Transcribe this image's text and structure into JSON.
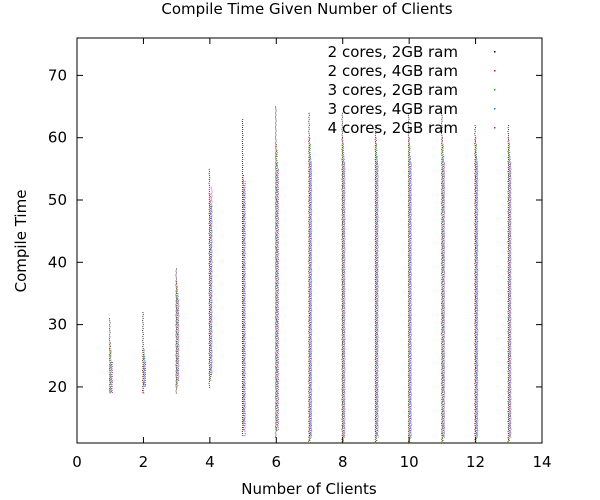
{
  "chart_data": {
    "type": "scatter",
    "title": "Compile Time Given Number of Clients",
    "xlabel": "Number of Clients",
    "ylabel": "Compile Time",
    "xlim": [
      0,
      14
    ],
    "ylim": [
      11,
      76
    ],
    "xticks": [
      0,
      2,
      4,
      6,
      8,
      10,
      12,
      14
    ],
    "yticks": [
      20,
      30,
      40,
      50,
      60,
      70
    ],
    "grid": false,
    "legend_position": "top-right",
    "series": [
      {
        "name": "2 cores, 2GB ram",
        "color": "#000000",
        "clusters": [
          {
            "x": 1,
            "min": 19,
            "max": 31
          },
          {
            "x": 2,
            "min": 19,
            "max": 32
          },
          {
            "x": 3,
            "min": 19,
            "max": 39
          },
          {
            "x": 4,
            "min": 20,
            "max": 55
          },
          {
            "x": 5,
            "min": 12,
            "max": 63
          },
          {
            "x": 6,
            "min": 12,
            "max": 65
          },
          {
            "x": 7,
            "min": 11,
            "max": 64
          },
          {
            "x": 8,
            "min": 11,
            "max": 64
          },
          {
            "x": 9,
            "min": 11,
            "max": 62
          },
          {
            "x": 10,
            "min": 11,
            "max": 64
          },
          {
            "x": 11,
            "min": 11,
            "max": 64
          },
          {
            "x": 12,
            "min": 11,
            "max": 62
          },
          {
            "x": 13,
            "min": 11,
            "max": 62
          }
        ]
      },
      {
        "name": "2 cores, 4GB ram",
        "color": "#ff0000",
        "clusters": [
          {
            "x": 1,
            "min": 19,
            "max": 27
          },
          {
            "x": 2,
            "min": 19,
            "max": 26
          },
          {
            "x": 3,
            "min": 20,
            "max": 37
          },
          {
            "x": 4,
            "min": 21,
            "max": 51
          },
          {
            "x": 5,
            "min": 13,
            "max": 54
          },
          {
            "x": 6,
            "min": 13,
            "max": 59
          },
          {
            "x": 7,
            "min": 11,
            "max": 60
          },
          {
            "x": 8,
            "min": 11,
            "max": 60
          },
          {
            "x": 9,
            "min": 11,
            "max": 60
          },
          {
            "x": 10,
            "min": 11,
            "max": 60
          },
          {
            "x": 11,
            "min": 11,
            "max": 60
          },
          {
            "x": 12,
            "min": 11,
            "max": 60
          },
          {
            "x": 13,
            "min": 11,
            "max": 60
          }
        ]
      },
      {
        "name": "3 cores, 2GB ram",
        "color": "#00c000",
        "clusters": [
          {
            "x": 1,
            "min": 19,
            "max": 26
          },
          {
            "x": 2,
            "min": 20,
            "max": 26
          },
          {
            "x": 3,
            "min": 20,
            "max": 36
          },
          {
            "x": 4,
            "min": 21,
            "max": 50
          },
          {
            "x": 5,
            "min": 13,
            "max": 53
          },
          {
            "x": 6,
            "min": 13,
            "max": 58
          },
          {
            "x": 7,
            "min": 11,
            "max": 59
          },
          {
            "x": 8,
            "min": 11,
            "max": 59
          },
          {
            "x": 9,
            "min": 11,
            "max": 59
          },
          {
            "x": 10,
            "min": 11,
            "max": 59
          },
          {
            "x": 11,
            "min": 11,
            "max": 59
          },
          {
            "x": 12,
            "min": 11,
            "max": 59
          },
          {
            "x": 13,
            "min": 11,
            "max": 59
          }
        ]
      },
      {
        "name": "3 cores, 4GB ram",
        "color": "#0080ff",
        "clusters": [
          {
            "x": 1,
            "min": 19,
            "max": 24
          },
          {
            "x": 2,
            "min": 20,
            "max": 25
          },
          {
            "x": 3,
            "min": 21,
            "max": 35
          },
          {
            "x": 4,
            "min": 22,
            "max": 49
          },
          {
            "x": 5,
            "min": 14,
            "max": 52
          },
          {
            "x": 6,
            "min": 14,
            "max": 56
          },
          {
            "x": 7,
            "min": 12,
            "max": 57
          },
          {
            "x": 8,
            "min": 12,
            "max": 57
          },
          {
            "x": 9,
            "min": 12,
            "max": 57
          },
          {
            "x": 10,
            "min": 12,
            "max": 57
          },
          {
            "x": 11,
            "min": 12,
            "max": 57
          },
          {
            "x": 12,
            "min": 12,
            "max": 57
          },
          {
            "x": 13,
            "min": 12,
            "max": 57
          }
        ]
      },
      {
        "name": "4 cores, 2GB ram",
        "color": "#c000ff",
        "clusters": [
          {
            "x": 1,
            "min": 19,
            "max": 24
          },
          {
            "x": 2,
            "min": 20,
            "max": 24
          },
          {
            "x": 3,
            "min": 21,
            "max": 34
          },
          {
            "x": 4,
            "min": 22,
            "max": 52
          },
          {
            "x": 5,
            "min": 12,
            "max": 53
          },
          {
            "x": 6,
            "min": 13,
            "max": 55
          },
          {
            "x": 7,
            "min": 12,
            "max": 56
          },
          {
            "x": 8,
            "min": 12,
            "max": 56
          },
          {
            "x": 9,
            "min": 12,
            "max": 56
          },
          {
            "x": 10,
            "min": 12,
            "max": 56
          },
          {
            "x": 11,
            "min": 12,
            "max": 56
          },
          {
            "x": 12,
            "min": 12,
            "max": 56
          },
          {
            "x": 13,
            "min": 12,
            "max": 56
          }
        ]
      }
    ]
  }
}
